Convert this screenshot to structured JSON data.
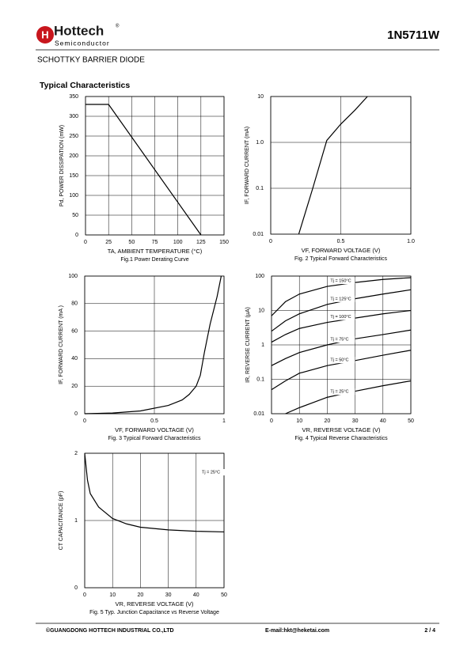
{
  "header": {
    "brand": "Hottech",
    "sub": "Semiconductor",
    "mark": "®",
    "part": "1N5711W",
    "product": "SCHOTTKY BARRIER DIODE",
    "section": "Typical Characteristics"
  },
  "footer": {
    "company": "©GUANGDONG HOTTECH INDUSTRIAL CO.,LTD",
    "email": "E-mail:hkt@heketai.com",
    "page": "2 / 4"
  },
  "chart_data": [
    {
      "type": "line",
      "title": "Fig.1  Power Derating Curve",
      "x_label": "TA, AMBIENT TEMPERATURE (°C)",
      "y_label": "Pd, POWER DISSIPATION (mW)",
      "x": [
        0,
        25,
        125
      ],
      "series": [
        {
          "color": "#000000",
          "values": [
            330,
            330,
            0
          ]
        }
      ],
      "xlim": [
        0,
        150
      ],
      "ylim": [
        0,
        350
      ],
      "xticks": [
        0,
        25,
        50,
        75,
        100,
        125,
        150
      ],
      "yticks": [
        0,
        50,
        100,
        150,
        200,
        250,
        300,
        350
      ],
      "grid": true,
      "ylog": false
    },
    {
      "type": "line",
      "title": "Fig. 2 Typical Forward Characteristics",
      "x_label": "VF, FORWARD VOLTAGE (V)",
      "y_label": "IF, FORWARD CURRENT (mA)",
      "x": [
        0.2,
        0.3,
        0.4,
        0.5,
        0.6,
        0.69
      ],
      "series": [
        {
          "color": "#000000",
          "values": [
            0.01,
            0.1,
            1.1,
            2.5,
            5,
            10
          ]
        }
      ],
      "xlim": [
        0,
        1
      ],
      "ylim": [
        0.01,
        10
      ],
      "xticks": [
        0,
        0.5,
        {
          "value": 1,
          "label": "1.0"
        }
      ],
      "yticks": [
        0.01,
        0.1,
        {
          "value": 1,
          "label": "1.0"
        },
        10
      ],
      "grid": true,
      "ylog": true
    },
    {
      "type": "line",
      "title": "Fig. 3 Typical Forward Characteristics",
      "x_label": "VF, FORWARD VOLTAGE (V)",
      "y_label": "IF, FORWARD CURRENT (mA )",
      "x": [
        0,
        0.2,
        0.4,
        0.6,
        0.7,
        0.75,
        0.8,
        0.83,
        0.86,
        0.9,
        0.95,
        0.98
      ],
      "series": [
        {
          "color": "#000000",
          "values": [
            0,
            0.5,
            2,
            6,
            10,
            14,
            20,
            28,
            45,
            65,
            85,
            100
          ]
        }
      ],
      "xlim": [
        0,
        1
      ],
      "ylim": [
        0,
        100
      ],
      "xticks": [
        0,
        0.5,
        1
      ],
      "yticks": [
        0,
        20,
        40,
        60,
        80,
        100
      ],
      "grid": true,
      "ylog": false
    },
    {
      "type": "line",
      "title": "Fig. 4 Typical Reverse Characteristics",
      "x_label": "VR, REVERSE VOLTAGE (V)",
      "y_label": "IR, REVERSE CURRENT (µA)",
      "x": [
        0,
        5,
        10,
        20,
        30,
        40,
        50
      ],
      "series": [
        {
          "name": "Tj = 150°C",
          "color": "#000000",
          "values": [
            7,
            18,
            30,
            50,
            65,
            80,
            90
          ]
        },
        {
          "name": "Tj = 125°C",
          "color": "#000000",
          "values": [
            2.5,
            5,
            8,
            15,
            22,
            30,
            40
          ]
        },
        {
          "name": "Tj = 100°C",
          "color": "#000000",
          "values": [
            1.2,
            2,
            3,
            4.5,
            6,
            8,
            10
          ]
        },
        {
          "name": "Tj = 75°C",
          "color": "#000000",
          "values": [
            0.25,
            0.4,
            0.6,
            1,
            1.5,
            2,
            2.7
          ]
        },
        {
          "name": "Tj = 50°C",
          "color": "#000000",
          "values": [
            0.05,
            0.09,
            0.15,
            0.25,
            0.35,
            0.5,
            0.7
          ]
        },
        {
          "name": "Tj = 25°C",
          "color": "#000000",
          "values": [
            null,
            0.01,
            0.015,
            0.03,
            0.045,
            0.065,
            0.09
          ]
        }
      ],
      "xlim": [
        0,
        50
      ],
      "ylim": [
        0.01,
        100
      ],
      "xticks": [
        0,
        10,
        20,
        30,
        40,
        50
      ],
      "yticks": [
        0.01,
        0.1,
        1,
        10,
        100
      ],
      "grid": true,
      "ylog": true
    },
    {
      "type": "line",
      "title": "Fig. 5 Typ. Junction Capacitance vs Reverse Voltage",
      "x_label": "VR, REVERSE VOLTAGE (V)",
      "y_label": "CT CAPACITANCE (pF)",
      "x": [
        0,
        1,
        2,
        5,
        10,
        15,
        20,
        30,
        40,
        50
      ],
      "series": [
        {
          "name": "Tj = 25°C",
          "color": "#000000",
          "values": [
            2,
            1.6,
            1.4,
            1.2,
            1.03,
            0.95,
            0.9,
            0.86,
            0.84,
            0.83
          ]
        }
      ],
      "xlim": [
        0,
        50
      ],
      "ylim": [
        0,
        2
      ],
      "xticks": [
        0,
        10,
        20,
        30,
        40,
        50
      ],
      "yticks": [
        0,
        1,
        2
      ],
      "grid": true,
      "ylog": false
    }
  ]
}
